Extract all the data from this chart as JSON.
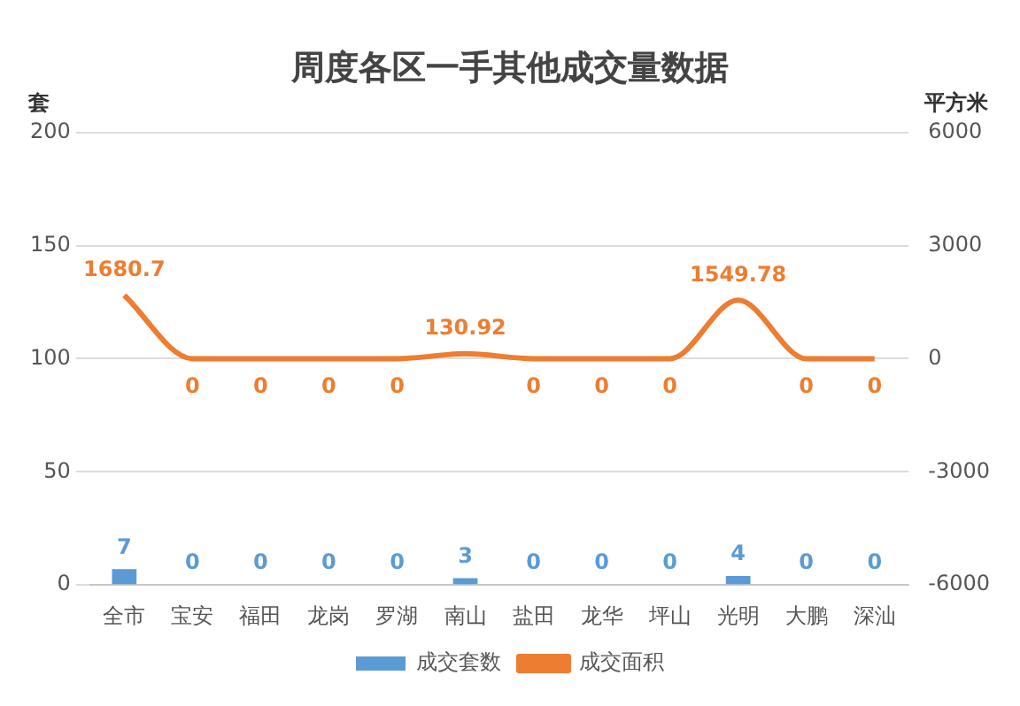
{
  "chart_data": {
    "type": "bar",
    "title": "周度各区一手其他成交量数据",
    "ylabel": "套",
    "y2label": "平方米",
    "categories": [
      "全市",
      "宝安",
      "福田",
      "龙岗",
      "罗湖",
      "南山",
      "盐田",
      "龙华",
      "坪山",
      "光明",
      "大鹏",
      "深汕"
    ],
    "series": [
      {
        "name": "成交套数",
        "color": "#5b9bd5",
        "values": [
          7,
          0,
          0,
          0,
          0,
          3,
          0,
          0,
          0,
          4,
          0,
          0
        ]
      },
      {
        "name": "成交面积",
        "type": "line",
        "axis": "y2",
        "color": "#ed7d31",
        "values": [
          1680.7,
          0,
          0,
          0,
          0,
          130.92,
          0,
          0,
          0,
          1549.78,
          0,
          0
        ]
      }
    ],
    "ylim": [
      0,
      200
    ],
    "yticks": [
      0,
      50,
      100,
      150,
      200
    ],
    "y2lim": [
      -6000,
      6000
    ],
    "y2ticks": [
      -6000,
      -3000,
      0,
      3000,
      6000
    ],
    "grid": "y",
    "legend": "bottom",
    "data_labels": true,
    "marker": "none"
  }
}
